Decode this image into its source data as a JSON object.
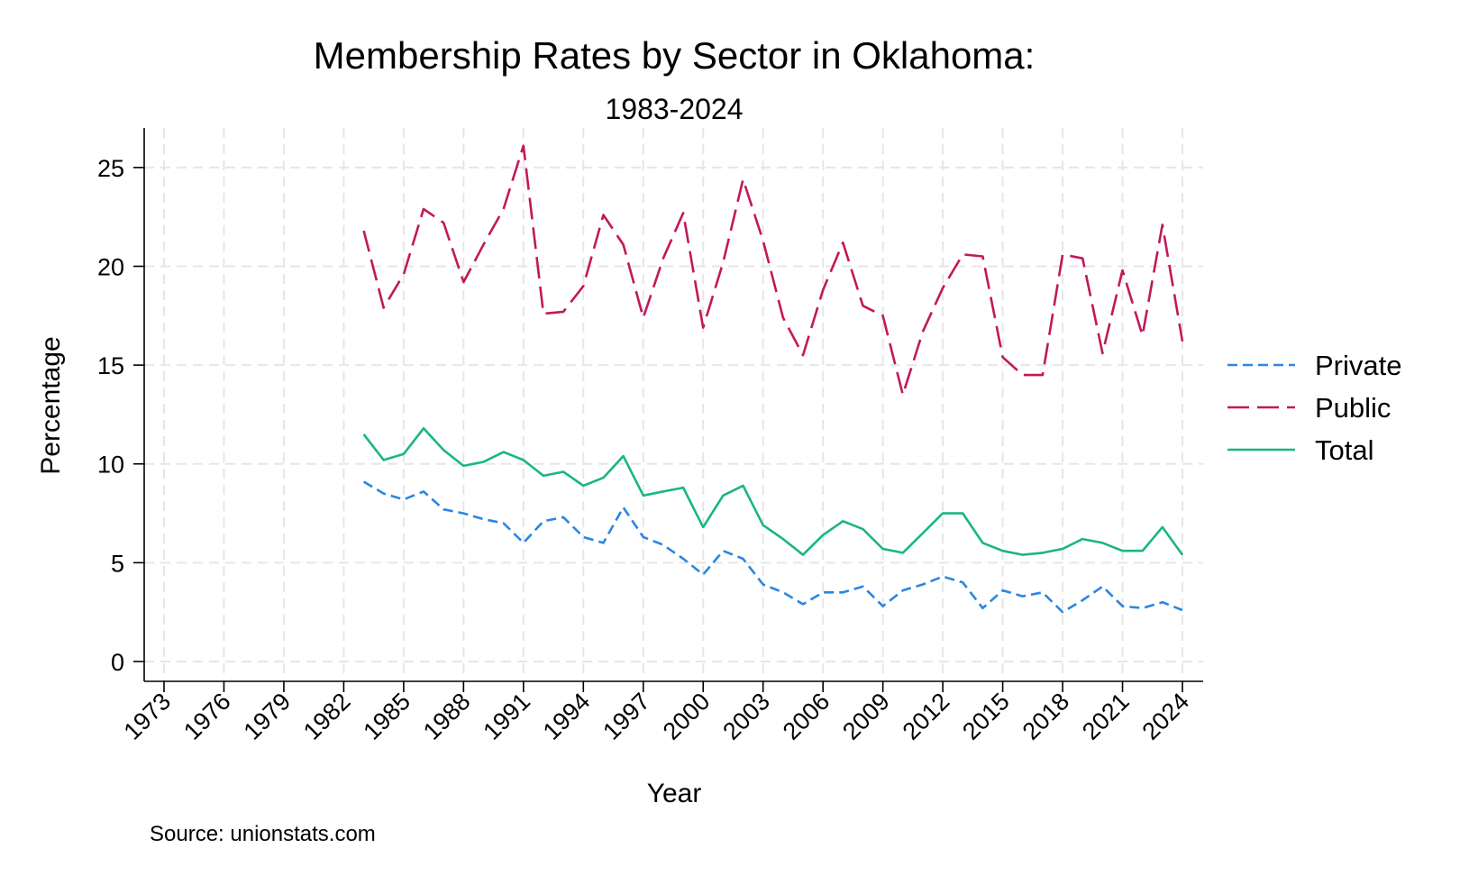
{
  "chart_data": {
    "type": "line",
    "title": "Membership Rates by Sector in Oklahoma:",
    "subtitle": "1983-2024",
    "xlabel": "Year",
    "ylabel": "Percentage",
    "source": "Source: unionstats.com",
    "xlim": [
      1973,
      2024
    ],
    "ylim": [
      0,
      27
    ],
    "x_ticks": [
      1973,
      1976,
      1979,
      1982,
      1985,
      1988,
      1991,
      1994,
      1997,
      2000,
      2003,
      2006,
      2009,
      2012,
      2015,
      2018,
      2021,
      2024
    ],
    "y_ticks": [
      0,
      5,
      10,
      15,
      20,
      25
    ],
    "grid": true,
    "legend_position": "right",
    "x": [
      1983,
      1984,
      1985,
      1986,
      1987,
      1988,
      1989,
      1990,
      1991,
      1992,
      1993,
      1994,
      1995,
      1996,
      1997,
      1998,
      1999,
      2000,
      2001,
      2002,
      2003,
      2004,
      2005,
      2006,
      2007,
      2008,
      2009,
      2010,
      2011,
      2012,
      2013,
      2014,
      2015,
      2016,
      2017,
      2018,
      2019,
      2020,
      2021,
      2022,
      2023,
      2024
    ],
    "series": [
      {
        "name": "Private",
        "color": "#2b86e2",
        "dash": "short",
        "values": [
          9.1,
          8.5,
          8.2,
          8.6,
          7.7,
          7.5,
          7.2,
          7.0,
          6.0,
          7.1,
          7.3,
          6.3,
          6.0,
          7.8,
          6.3,
          5.9,
          5.2,
          4.4,
          5.6,
          5.2,
          3.9,
          3.5,
          2.9,
          3.5,
          3.5,
          3.8,
          2.8,
          3.6,
          3.9,
          4.3,
          4.0,
          2.7,
          3.6,
          3.3,
          3.5,
          2.5,
          3.1,
          3.8,
          2.8,
          2.7,
          3.0,
          2.6
        ]
      },
      {
        "name": "Public",
        "color": "#c2185b",
        "dash": "long",
        "values": [
          21.8,
          17.9,
          19.6,
          22.9,
          22.2,
          19.2,
          21.1,
          22.9,
          26.1,
          17.6,
          17.7,
          19.0,
          22.6,
          21.1,
          17.4,
          20.4,
          22.7,
          16.9,
          20.2,
          24.4,
          21.3,
          17.4,
          15.5,
          18.8,
          21.2,
          18.0,
          17.5,
          13.5,
          16.7,
          18.9,
          20.6,
          20.5,
          15.4,
          14.5,
          14.5,
          20.6,
          20.4,
          15.6,
          19.8,
          16.5,
          22.1,
          16.2
        ]
      },
      {
        "name": "Total",
        "color": "#1ab67f",
        "dash": "solid",
        "values": [
          11.5,
          10.2,
          10.5,
          11.8,
          10.7,
          9.9,
          10.1,
          10.6,
          10.2,
          9.4,
          9.6,
          8.9,
          9.3,
          10.4,
          8.4,
          8.6,
          8.8,
          6.8,
          8.4,
          8.9,
          6.9,
          6.2,
          5.4,
          6.4,
          7.1,
          6.7,
          5.7,
          5.5,
          6.5,
          7.5,
          7.5,
          6.0,
          5.6,
          5.4,
          5.5,
          5.7,
          6.2,
          6.0,
          5.6,
          5.6,
          6.8,
          5.4
        ]
      }
    ]
  }
}
